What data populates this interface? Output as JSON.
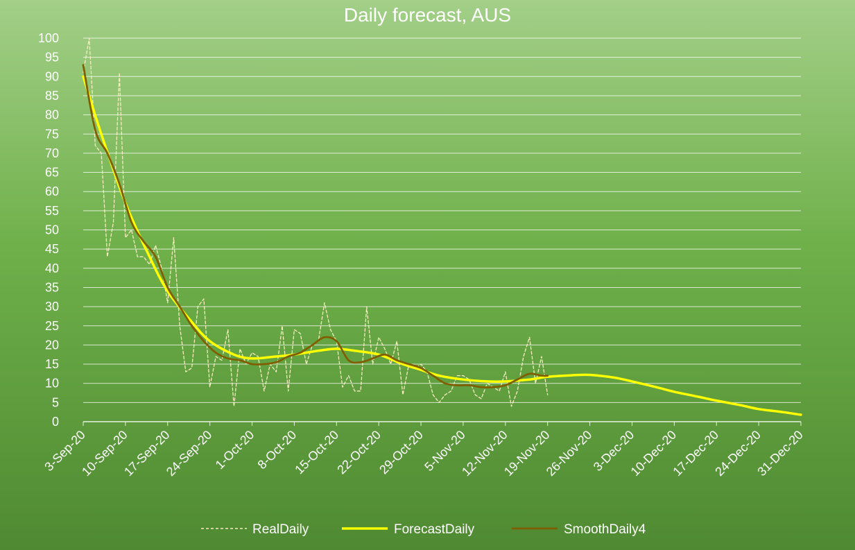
{
  "chart_data": {
    "type": "line",
    "title": "Daily forecast, AUS",
    "xlabel": "",
    "ylabel": "",
    "ylim": [
      0,
      100
    ],
    "y_ticks": [
      0,
      5,
      10,
      15,
      20,
      25,
      30,
      35,
      40,
      45,
      50,
      55,
      60,
      65,
      70,
      75,
      80,
      85,
      90,
      95,
      100
    ],
    "x_start_date": "2020-09-03",
    "x_end_date": "2020-12-31",
    "x_tick_labels": [
      "3-Sep-20",
      "10-Sep-20",
      "17-Sep-20",
      "24-Sep-20",
      "1-Oct-20",
      "8-Oct-20",
      "15-Oct-20",
      "22-Oct-20",
      "29-Oct-20",
      "5-Nov-20",
      "12-Nov-20",
      "19-Nov-20",
      "26-Nov-20",
      "3-Dec-20",
      "10-Dec-20",
      "17-Dec-20",
      "24-Dec-20",
      "31-Dec-20"
    ],
    "grid": true,
    "legend_position": "bottom",
    "series": [
      {
        "name": "RealDaily",
        "color": "#f7eec2",
        "dash": true,
        "x": [
          "2020-09-03",
          "2020-09-04",
          "2020-09-05",
          "2020-09-06",
          "2020-09-07",
          "2020-09-08",
          "2020-09-09",
          "2020-09-10",
          "2020-09-11",
          "2020-09-12",
          "2020-09-13",
          "2020-09-14",
          "2020-09-15",
          "2020-09-16",
          "2020-09-17",
          "2020-09-18",
          "2020-09-19",
          "2020-09-20",
          "2020-09-21",
          "2020-09-22",
          "2020-09-23",
          "2020-09-24",
          "2020-09-25",
          "2020-09-26",
          "2020-09-27",
          "2020-09-28",
          "2020-09-29",
          "2020-09-30",
          "2020-10-01",
          "2020-10-02",
          "2020-10-03",
          "2020-10-04",
          "2020-10-05",
          "2020-10-06",
          "2020-10-07",
          "2020-10-08",
          "2020-10-09",
          "2020-10-10",
          "2020-10-11",
          "2020-10-12",
          "2020-10-13",
          "2020-10-14",
          "2020-10-15",
          "2020-10-16",
          "2020-10-17",
          "2020-10-18",
          "2020-10-19",
          "2020-10-20",
          "2020-10-21",
          "2020-10-22",
          "2020-10-23",
          "2020-10-24",
          "2020-10-25",
          "2020-10-26",
          "2020-10-27",
          "2020-10-28",
          "2020-10-29",
          "2020-10-30",
          "2020-10-31",
          "2020-11-01",
          "2020-11-02",
          "2020-11-03",
          "2020-11-04",
          "2020-11-05",
          "2020-11-06",
          "2020-11-07",
          "2020-11-08",
          "2020-11-09",
          "2020-11-10",
          "2020-11-11",
          "2020-11-12",
          "2020-11-13",
          "2020-11-14",
          "2020-11-15",
          "2020-11-16",
          "2020-11-17",
          "2020-11-18",
          "2020-11-19"
        ],
        "y": [
          91,
          100,
          72,
          70,
          43,
          52,
          91,
          48,
          50,
          43,
          43,
          41,
          46,
          40,
          31,
          48,
          25,
          13,
          14,
          30,
          32,
          9,
          17,
          16,
          24,
          4,
          19,
          15,
          18,
          17,
          8,
          15,
          13,
          25,
          8,
          24,
          23,
          15,
          20,
          21,
          31,
          24,
          21,
          9,
          12,
          8,
          8,
          30,
          15,
          22,
          19,
          15,
          21,
          7,
          15,
          14,
          15,
          13,
          7,
          5,
          7,
          8,
          12,
          12,
          11,
          7,
          6,
          10,
          9,
          8,
          13,
          4,
          8,
          17,
          22,
          10,
          17,
          7
        ]
      },
      {
        "name": "ForecastDaily",
        "color": "#ffff00",
        "x": [
          "2020-09-03",
          "2020-09-06",
          "2020-09-10",
          "2020-09-14",
          "2020-09-17",
          "2020-09-21",
          "2020-09-24",
          "2020-09-28",
          "2020-10-01",
          "2020-10-05",
          "2020-10-08",
          "2020-10-12",
          "2020-10-15",
          "2020-10-18",
          "2020-10-22",
          "2020-10-26",
          "2020-10-29",
          "2020-11-01",
          "2020-11-05",
          "2020-11-09",
          "2020-11-12",
          "2020-11-16",
          "2020-11-19",
          "2020-11-23",
          "2020-11-26",
          "2020-11-30",
          "2020-12-03",
          "2020-12-07",
          "2020-12-10",
          "2020-12-14",
          "2020-12-17",
          "2020-12-21",
          "2020-12-24",
          "2020-12-28",
          "2020-12-31"
        ],
        "y": [
          90,
          75,
          57,
          43,
          34,
          26,
          21,
          17.5,
          16.5,
          17,
          17.5,
          18.5,
          19,
          18.5,
          17.5,
          15,
          13.5,
          12,
          11,
          10.5,
          10.5,
          11,
          11.7,
          12.1,
          12.2,
          11.5,
          10.5,
          9,
          7.8,
          6.5,
          5.5,
          4.3,
          3.3,
          2.5,
          1.8
        ]
      },
      {
        "name": "SmoothDaily4",
        "color": "#7f5f00",
        "x": [
          "2020-09-03",
          "2020-09-05",
          "2020-09-07",
          "2020-09-09",
          "2020-09-11",
          "2020-09-13",
          "2020-09-15",
          "2020-09-17",
          "2020-09-19",
          "2020-09-21",
          "2020-09-23",
          "2020-09-25",
          "2020-09-27",
          "2020-09-29",
          "2020-10-01",
          "2020-10-03",
          "2020-10-05",
          "2020-10-07",
          "2020-10-09",
          "2020-10-11",
          "2020-10-13",
          "2020-10-15",
          "2020-10-17",
          "2020-10-19",
          "2020-10-21",
          "2020-10-23",
          "2020-10-25",
          "2020-10-27",
          "2020-10-29",
          "2020-10-31",
          "2020-11-02",
          "2020-11-04",
          "2020-11-06",
          "2020-11-08",
          "2020-11-10",
          "2020-11-12",
          "2020-11-14",
          "2020-11-16",
          "2020-11-18",
          "2020-11-19"
        ],
        "y": [
          93,
          76,
          70,
          62,
          52,
          47,
          43,
          35,
          30,
          25,
          21,
          18,
          16.5,
          16,
          15,
          15,
          15.5,
          17,
          18,
          20,
          22,
          21,
          16,
          15.5,
          16.5,
          17.5,
          16,
          15,
          14,
          12,
          10,
          9.5,
          9.5,
          9,
          9,
          9.5,
          11,
          12.5,
          12,
          12
        ]
      }
    ]
  }
}
